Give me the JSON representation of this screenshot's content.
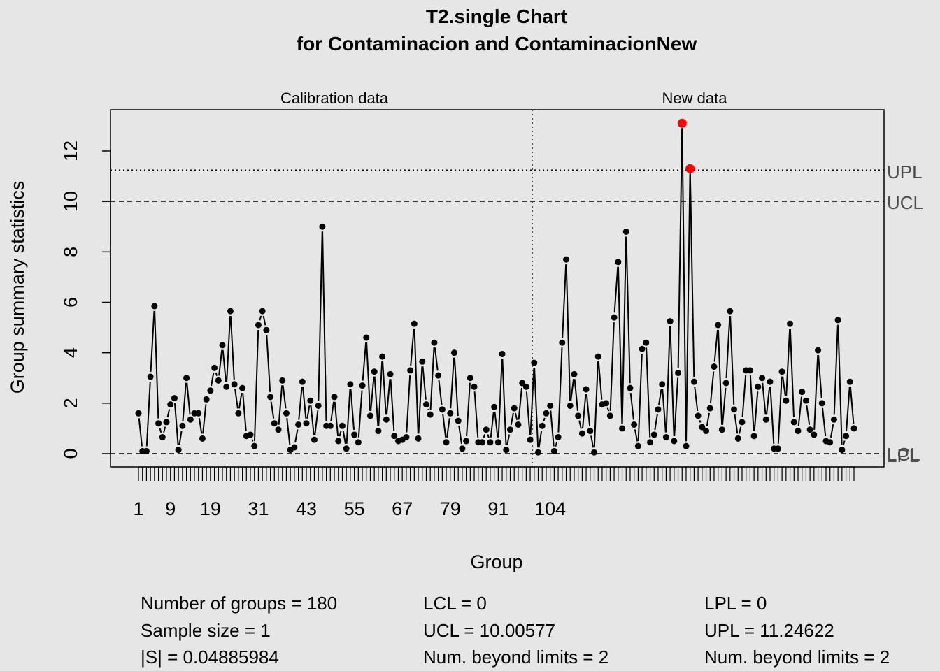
{
  "chart_data": {
    "type": "line",
    "title": "T2.single Chart",
    "subtitle": "for Contaminacion and ContaminacionNew",
    "xlabel": "Group",
    "ylabel": "Group summary statistics",
    "sections": [
      "Calibration data",
      "New data"
    ],
    "new_data_start": 100,
    "xlim": [
      1,
      180
    ],
    "ylim": [
      0,
      13.1
    ],
    "x_tick_labels": [
      "1",
      "9",
      "19",
      "31",
      "43",
      "55",
      "67",
      "79",
      "91",
      "104"
    ],
    "y_ticks": [
      0,
      2,
      4,
      6,
      8,
      10,
      12
    ],
    "limits": {
      "UCL": 10.00577,
      "UPL": 11.24622,
      "LCL": 0,
      "LPL": 0
    },
    "limit_labels": [
      "UPL",
      "UCL",
      "LCL",
      "LPL"
    ],
    "out_of_control_color": "#ff0000",
    "series": [
      {
        "values": [
          1.6,
          0.1,
          0.1,
          3.05,
          5.85,
          1.2,
          0.65,
          1.25,
          1.95,
          2.2,
          0.15,
          1.1,
          3.0,
          1.35,
          1.6,
          1.6,
          0.6,
          2.15,
          2.5,
          3.4,
          2.9,
          4.3,
          2.65,
          5.65,
          2.75,
          1.6,
          2.6,
          0.7,
          0.75,
          0.3,
          5.1,
          5.65,
          4.9,
          2.25,
          1.2,
          0.95,
          2.9,
          1.6,
          0.15,
          0.25,
          1.15,
          2.85,
          1.2,
          2.1,
          0.55,
          1.9,
          9.0,
          1.1,
          1.1,
          2.25,
          0.5,
          1.1,
          0.2,
          2.75,
          0.75,
          0.45,
          2.7,
          4.6,
          1.5,
          3.25,
          0.9,
          3.85,
          1.35,
          3.15,
          0.7,
          0.5,
          0.55,
          0.65,
          3.3,
          5.15,
          0.6,
          3.65,
          1.95,
          1.55,
          4.4,
          3.1,
          1.75,
          0.45,
          1.6,
          4.0,
          1.3,
          0.2,
          0.5,
          3.0,
          2.65,
          0.45,
          0.45,
          0.95,
          0.45,
          1.85,
          0.45,
          3.95,
          0.15,
          0.95,
          1.8,
          1.15,
          2.8,
          2.65,
          0.55,
          3.6,
          0.05,
          1.1,
          1.6,
          1.9,
          0.1,
          0.65,
          4.4,
          7.7,
          1.9,
          3.15,
          1.5,
          0.8,
          2.55,
          0.9,
          0.05,
          3.85,
          1.95,
          2.0,
          1.5,
          5.4,
          7.6,
          1.0,
          8.8,
          2.6,
          1.15,
          0.3,
          4.15,
          4.4,
          0.45,
          0.75,
          1.75,
          2.75,
          0.65,
          5.25,
          0.5,
          3.2,
          13.1,
          0.3,
          11.3,
          2.85,
          1.5,
          1.05,
          0.9,
          1.8,
          3.45,
          5.1,
          0.95,
          2.8,
          5.65,
          1.75,
          0.6,
          1.25,
          3.3,
          3.3,
          0.7,
          2.65,
          3.0,
          1.35,
          2.85,
          0.2,
          0.2,
          3.25,
          2.1,
          5.15,
          1.25,
          0.9,
          2.45,
          2.1,
          0.95,
          0.75,
          4.1,
          2.0,
          0.5,
          0.45,
          1.35,
          5.3,
          0.15,
          0.7,
          2.85,
          1.0
        ]
      }
    ],
    "grid": false,
    "legend": "none"
  },
  "stats": {
    "col1": [
      "Number of groups = 180",
      "Sample size = 1",
      "|S| = 0.04885984"
    ],
    "col2": [
      "LCL = 0",
      "UCL = 10.00577",
      "Num. beyond limits = 2"
    ],
    "col3": [
      "LPL = 0",
      "UPL = 11.24622",
      "Num. beyond limits = 2"
    ]
  }
}
